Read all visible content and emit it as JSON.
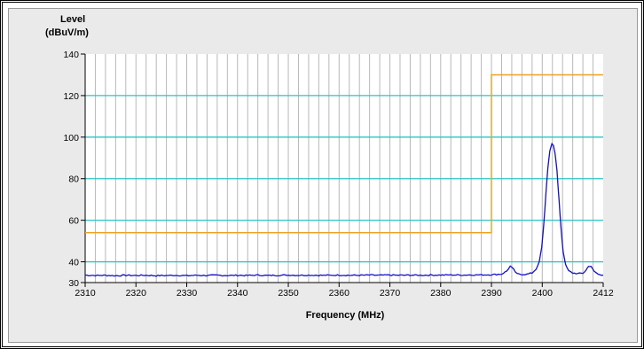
{
  "chart_data": {
    "type": "line",
    "ylabel_line1": "Level",
    "ylabel_line2": "(dBuV/m)",
    "xlabel": "Frequency (MHz)",
    "xlim": [
      2310,
      2412
    ],
    "ylim": [
      30,
      140
    ],
    "x_ticks": [
      2310,
      2320,
      2330,
      2340,
      2350,
      2360,
      2370,
      2380,
      2390,
      2400,
      2412
    ],
    "y_ticks": [
      30,
      40,
      60,
      80,
      100,
      120,
      140
    ],
    "y_major_gridlines": [
      40,
      60,
      80,
      100,
      120
    ],
    "x_minor_step": 2,
    "colors": {
      "plot_bg": "#ffffff",
      "major_grid": "#2cc4c4",
      "minor_grid": "#b8b8b8",
      "limit_line": "#f0a020",
      "trace": "#1010d0"
    },
    "limit_line": {
      "name": "",
      "points": [
        [
          2310,
          54
        ],
        [
          2390,
          54
        ],
        [
          2390,
          130
        ],
        [
          2412,
          130
        ]
      ]
    },
    "series": [
      {
        "name": "",
        "points": [
          [
            2310,
            33.6
          ],
          [
            2312,
            33.4
          ],
          [
            2314,
            33.5
          ],
          [
            2316,
            33.3
          ],
          [
            2318,
            33.5
          ],
          [
            2320,
            33.4
          ],
          [
            2322,
            33.5
          ],
          [
            2324,
            33.3
          ],
          [
            2326,
            33.4
          ],
          [
            2328,
            33.5
          ],
          [
            2330,
            33.3
          ],
          [
            2332,
            33.5
          ],
          [
            2334,
            33.4
          ],
          [
            2336,
            33.5
          ],
          [
            2338,
            33.4
          ],
          [
            2340,
            33.5
          ],
          [
            2342,
            33.4
          ],
          [
            2344,
            33.6
          ],
          [
            2346,
            33.4
          ],
          [
            2348,
            33.5
          ],
          [
            2350,
            33.6
          ],
          [
            2352,
            33.5
          ],
          [
            2354,
            33.6
          ],
          [
            2356,
            33.5
          ],
          [
            2358,
            33.5
          ],
          [
            2360,
            33.6
          ],
          [
            2362,
            33.5
          ],
          [
            2364,
            33.5
          ],
          [
            2366,
            33.6
          ],
          [
            2368,
            33.5
          ],
          [
            2370,
            33.6
          ],
          [
            2372,
            33.5
          ],
          [
            2374,
            33.6
          ],
          [
            2376,
            33.5
          ],
          [
            2378,
            33.6
          ],
          [
            2380,
            33.6
          ],
          [
            2382,
            33.7
          ],
          [
            2384,
            33.6
          ],
          [
            2386,
            33.7
          ],
          [
            2388,
            33.7
          ],
          [
            2390,
            33.8
          ],
          [
            2391,
            33.9
          ],
          [
            2392,
            34.1
          ],
          [
            2393,
            35.5
          ],
          [
            2393.7,
            37.9
          ],
          [
            2394.4,
            36.2
          ],
          [
            2395,
            34.2
          ],
          [
            2396,
            33.9
          ],
          [
            2397,
            34.0
          ],
          [
            2398,
            34.6
          ],
          [
            2398.8,
            36.5
          ],
          [
            2399.4,
            40
          ],
          [
            2399.9,
            47
          ],
          [
            2400.3,
            58
          ],
          [
            2400.7,
            72
          ],
          [
            2401.1,
            85
          ],
          [
            2401.5,
            93.5
          ],
          [
            2401.9,
            96.8
          ],
          [
            2402.2,
            96
          ],
          [
            2402.5,
            92.5
          ],
          [
            2402.9,
            84
          ],
          [
            2403.3,
            70
          ],
          [
            2403.7,
            56
          ],
          [
            2404.1,
            45
          ],
          [
            2404.6,
            38.5
          ],
          [
            2405.2,
            35.6
          ],
          [
            2406,
            34.6
          ],
          [
            2407,
            34.3
          ],
          [
            2408,
            34.5
          ],
          [
            2408.6,
            35.8
          ],
          [
            2409.1,
            38.0
          ],
          [
            2409.6,
            37.6
          ],
          [
            2410.2,
            35.5
          ],
          [
            2411,
            34.0
          ],
          [
            2412,
            33.6
          ]
        ]
      }
    ]
  }
}
